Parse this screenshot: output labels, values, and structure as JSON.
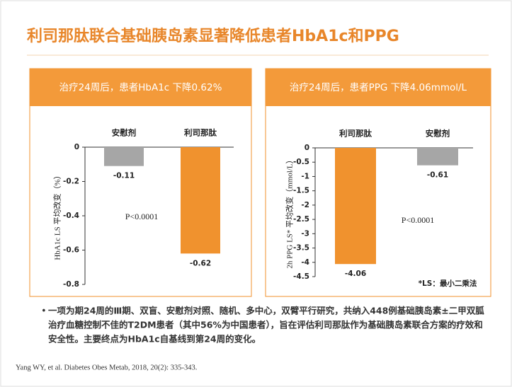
{
  "title": "利司那肽联合基础胰岛素显著降低患者HbA1c和PPG",
  "chart_data": [
    {
      "type": "bar",
      "header": "治疗24周后，患者HbA1c 下降0.62%",
      "y_label": "HbA1c LS 平均改变（%）",
      "categories": [
        "安慰剂",
        "利司那肽"
      ],
      "values": [
        -0.11,
        -0.62
      ],
      "colors": [
        "#a6a6a6",
        "#f0922e"
      ],
      "ylim": [
        -0.8,
        0
      ],
      "yticks": [
        0,
        -0.2,
        -0.4,
        -0.6,
        -0.8
      ],
      "annotation": "P<0.0001"
    },
    {
      "type": "bar",
      "header": "治疗24周后，患者PPG 下降4.06mmol/L",
      "y_label": "2h PPG LS* 平均改变（mmol/L）",
      "categories": [
        "利司那肽",
        "安慰剂"
      ],
      "values": [
        -4.06,
        -0.61
      ],
      "colors": [
        "#f0922e",
        "#a6a6a6"
      ],
      "ylim": [
        -4.5,
        0
      ],
      "yticks": [
        0,
        -0.5,
        -1,
        -1.5,
        -2,
        -2.5,
        -3,
        -3.5,
        -4,
        -4.5
      ],
      "annotation": "P<0.0001",
      "footnote": "*LS：最小二乘法"
    }
  ],
  "bullet": [
    "一项为期24周的Ⅲ期、双盲、安慰剂对照、随机、多中心，双臂平行研究，共纳入448例基础胰岛素±二甲双胍",
    "治疗血糖控制不佳的T2DM患者（其中56%为中国患者），旨在评估利司那肽作为基础胰岛素联合方案的疗效和",
    "安全性。主要终点为HbA1c自基线到第24周的变化。"
  ],
  "reference": "Yang WY, et al. Diabetes Obes Metab, 2018, 20(2): 335-343."
}
